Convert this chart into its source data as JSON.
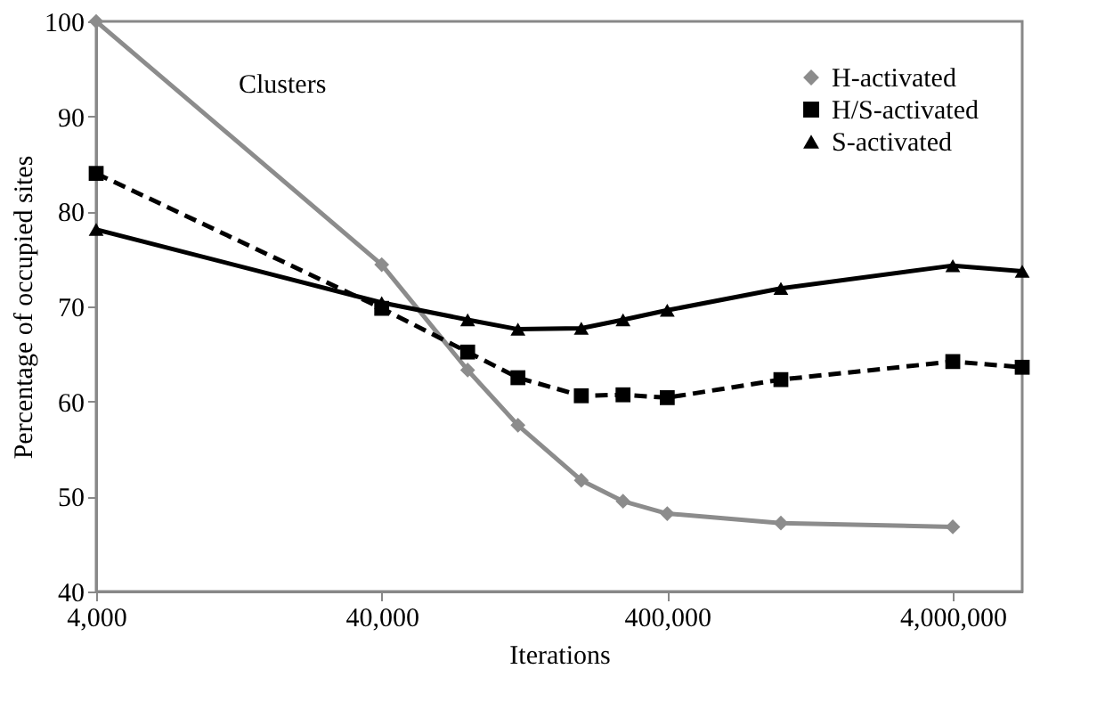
{
  "chart_data": {
    "type": "line",
    "xlabel": "Iterations",
    "ylabel": "Percentage of occupied sites",
    "annotations": [
      "Clusters"
    ],
    "x": [
      4000,
      40000,
      80000,
      120000,
      200000,
      280000,
      400000,
      1000000,
      4000000,
      7000000
    ],
    "series": [
      {
        "name": "H-activated",
        "color": "#8c8c8c",
        "marker": "diamond",
        "line_style": "solid",
        "values": [
          100,
          74.4,
          63.3,
          57.5,
          51.7,
          49.5,
          48.2,
          47.2,
          46.8,
          null
        ]
      },
      {
        "name": "H/S-activated",
        "color": "#000000",
        "marker": "square",
        "line_style": "dashed",
        "values": [
          84,
          69.8,
          65.2,
          62.5,
          60.6,
          60.7,
          60.4,
          62.3,
          64.2,
          63.6
        ]
      },
      {
        "name": "S-activated",
        "color": "#000000",
        "marker": "triangle",
        "line_style": "solid",
        "values": [
          78.1,
          70.4,
          68.6,
          67.6,
          67.7,
          68.6,
          69.6,
          71.9,
          74.3,
          73.7
        ]
      }
    ],
    "log": "x",
    "xlim": [
      4000,
      7000000
    ],
    "xticks": [
      {
        "value": 4000,
        "label": "4,000"
      },
      {
        "value": 40000,
        "label": "40,000"
      },
      {
        "value": 400000,
        "label": "400,000"
      },
      {
        "value": 4000000,
        "label": "4,000,000"
      }
    ],
    "ylim": [
      40,
      100
    ],
    "yticks": [
      40,
      50,
      60,
      70,
      80,
      90,
      100
    ],
    "grid": false,
    "legend": "top right"
  }
}
